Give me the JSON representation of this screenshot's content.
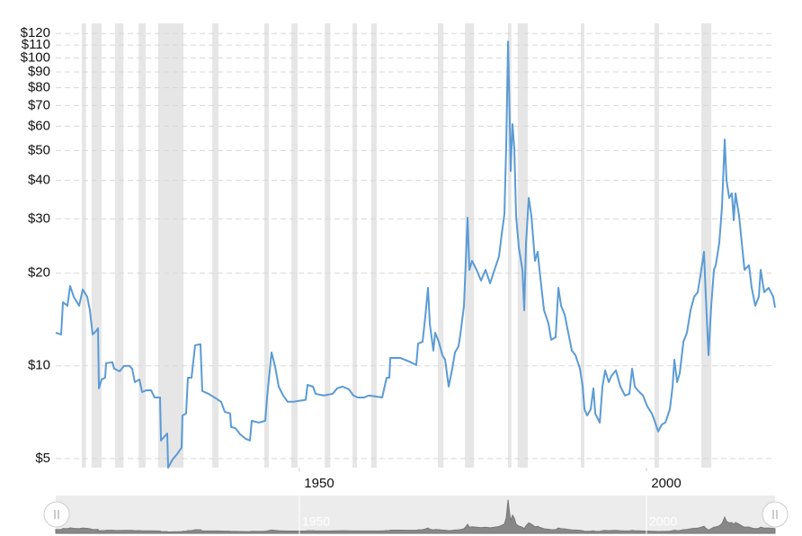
{
  "chart_data": {
    "type": "line",
    "yscale": "log",
    "grid": true,
    "recession_color": "#e6e6e6",
    "xlim": [
      1914.9,
      2018.52
    ],
    "xticks": [
      1950,
      2000
    ],
    "ylim": [
      4.67,
      121
    ],
    "yticks": [
      {
        "value": 5,
        "label": "$5"
      },
      {
        "value": 10,
        "label": "$10"
      },
      {
        "value": 20,
        "label": "$20"
      },
      {
        "value": 30,
        "label": "$30"
      },
      {
        "value": 40,
        "label": "$40"
      },
      {
        "value": 50,
        "label": "$50"
      },
      {
        "value": 60,
        "label": "$60"
      },
      {
        "value": 70,
        "label": "$70"
      },
      {
        "value": 80,
        "label": "$80"
      },
      {
        "value": 90,
        "label": "$90"
      },
      {
        "value": 100,
        "label": "$100"
      },
      {
        "value": 110,
        "label": "$110"
      },
      {
        "value": 120,
        "label": "$120"
      }
    ],
    "recessions": [
      [
        1918.65,
        1919.25
      ],
      [
        1920.05,
        1921.5
      ],
      [
        1923.45,
        1924.65
      ],
      [
        1926.85,
        1927.85
      ],
      [
        1929.65,
        1933.3
      ],
      [
        1937.45,
        1938.35
      ],
      [
        1944.95,
        1945.6
      ],
      [
        1948.85,
        1949.75
      ],
      [
        1953.65,
        1954.45
      ],
      [
        1957.65,
        1958.3
      ],
      [
        1960.35,
        1961.15
      ],
      [
        1969.95,
        1970.75
      ],
      [
        1973.85,
        1975.15
      ],
      [
        1980.05,
        1980.55
      ],
      [
        1981.45,
        1982.9
      ],
      [
        1990.55,
        1991.05
      ],
      [
        2001.15,
        2001.8
      ],
      [
        2007.9,
        2009.35
      ]
    ],
    "x": [
      1914.9,
      1915.68,
      1915.94,
      1916.58,
      1916.97,
      1917.49,
      1918.27,
      1918.79,
      1919.43,
      1919.82,
      1920.21,
      1920.73,
      1920.99,
      1921.12,
      1921.51,
      1922.02,
      1922.15,
      1923.06,
      1923.32,
      1924.1,
      1924.74,
      1925.52,
      1925.91,
      1926.3,
      1926.95,
      1927.34,
      1927.98,
      1928.63,
      1929.15,
      1929.93,
      1930.06,
      1930.96,
      1931.09,
      1931.74,
      1932.39,
      1933.03,
      1933.16,
      1933.68,
      1933.94,
      1934.46,
      1934.98,
      1935.75,
      1936.01,
      1936.92,
      1937.96,
      1938.73,
      1939.25,
      1940.03,
      1940.16,
      1940.8,
      1941.45,
      1942.23,
      1942.88,
      1943.13,
      1944.17,
      1945.08,
      1945.34,
      1945.99,
      1946.51,
      1947.02,
      1947.67,
      1948.32,
      1949.1,
      1950.0,
      1950.91,
      1951.17,
      1951.95,
      1952.34,
      1953.5,
      1954.8,
      1955.44,
      1956.22,
      1957.13,
      1957.78,
      1958.42,
      1959.33,
      1959.98,
      1961.01,
      1961.92,
      1962.57,
      1962.96,
      1963.09,
      1964.51,
      1965.81,
      1966.84,
      1967.1,
      1967.75,
      1968.14,
      1968.53,
      1968.79,
      1969.3,
      1969.56,
      1970.08,
      1970.6,
      1970.99,
      1971.51,
      1972.02,
      1972.41,
      1972.93,
      1973.19,
      1973.71,
      1973.97,
      1974.23,
      1974.49,
      1974.88,
      1975.52,
      1976.17,
      1976.82,
      1977.47,
      1978.11,
      1978.76,
      1979.15,
      1979.54,
      1979.8,
      1980.06,
      1980.32,
      1980.44,
      1980.7,
      1980.96,
      1981.22,
      1981.61,
      1982.13,
      1982.39,
      1982.65,
      1983.04,
      1983.42,
      1983.94,
      1984.33,
      1984.59,
      1985.24,
      1985.89,
      1986.27,
      1986.92,
      1987.31,
      1987.7,
      1988.22,
      1988.73,
      1989.25,
      1989.77,
      1990.42,
      1990.81,
      1991.07,
      1991.46,
      1991.97,
      1992.36,
      1992.62,
      1993.27,
      1993.66,
      1994.05,
      1994.57,
      1994.96,
      1995.6,
      1996.25,
      1996.9,
      1997.54,
      1997.93,
      1998.32,
      1998.84,
      1999.49,
      2000.13,
      2000.78,
      2001.17,
      2001.69,
      2002.21,
      2002.72,
      2003.37,
      2003.76,
      2004.02,
      2004.41,
      2004.8,
      2005.32,
      2005.83,
      2006.35,
      2006.87,
      2007.39,
      2007.9,
      2008.29,
      2008.55,
      2008.94,
      2009.33,
      2009.72,
      2009.98,
      2010.49,
      2010.88,
      2011.27,
      2011.53,
      2011.92,
      2012.31,
      2012.57,
      2012.83,
      2013.34,
      2013.73,
      2014.12,
      2014.77,
      2015.16,
      2015.67,
      2016.19,
      2016.45,
      2016.96,
      2017.61,
      2018.26,
      2018.52
    ],
    "series": [
      {
        "color": "#5b9bd5",
        "values": [
          12.81,
          12.64,
          16.1,
          15.67,
          18.17,
          16.76,
          15.67,
          17.69,
          16.76,
          15.15,
          12.64,
          12.98,
          13.24,
          8.45,
          9.03,
          9.15,
          10.2,
          10.27,
          9.79,
          9.6,
          9.99,
          9.99,
          9.79,
          8.85,
          9.03,
          8.22,
          8.33,
          8.33,
          7.89,
          7.89,
          5.72,
          6.03,
          4.67,
          4.97,
          5.17,
          5.42,
          6.9,
          7.0,
          9.15,
          9.15,
          11.66,
          11.75,
          8.28,
          8.11,
          7.84,
          7.64,
          7.09,
          7.0,
          6.33,
          6.27,
          6.0,
          5.8,
          5.72,
          6.63,
          6.54,
          6.63,
          7.89,
          11.05,
          9.92,
          8.56,
          8.01,
          7.64,
          7.64,
          7.7,
          7.75,
          8.67,
          8.56,
          8.11,
          8.01,
          8.11,
          8.45,
          8.56,
          8.39,
          8.01,
          7.89,
          7.89,
          8.01,
          7.95,
          7.89,
          9.15,
          9.15,
          10.61,
          10.61,
          10.33,
          10.06,
          11.81,
          11.97,
          14.46,
          17.92,
          13.7,
          11.2,
          12.81,
          11.97,
          10.83,
          10.47,
          8.56,
          9.79,
          11.05,
          11.58,
          12.64,
          15.67,
          21.92,
          30.27,
          20.5,
          21.92,
          20.5,
          18.91,
          20.5,
          18.54,
          20.5,
          22.68,
          26.81,
          31.1,
          52.5,
          113.0,
          60.0,
          42.9,
          60.9,
          50.8,
          30.7,
          24.26,
          20.5,
          15.15,
          25.08,
          35.1,
          30.7,
          21.92,
          23.46,
          20.5,
          15.15,
          13.7,
          12.14,
          12.38,
          17.92,
          15.67,
          14.65,
          12.81,
          11.2,
          10.83,
          9.79,
          8.56,
          7.23,
          6.9,
          7.23,
          8.45,
          7.0,
          6.54,
          8.56,
          9.66,
          8.85,
          9.28,
          9.66,
          8.56,
          8.01,
          8.11,
          9.79,
          8.56,
          8.28,
          8.01,
          7.38,
          7.0,
          6.63,
          6.12,
          6.45,
          6.54,
          7.23,
          8.56,
          10.47,
          8.85,
          9.47,
          11.97,
          12.81,
          15.15,
          16.76,
          17.34,
          20.5,
          23.46,
          16.76,
          10.83,
          15.67,
          20.5,
          21.2,
          25.08,
          32.8,
          54.3,
          40.1,
          35.1,
          36.3,
          29.7,
          36.3,
          30.7,
          25.08,
          20.5,
          21.2,
          17.92,
          15.67,
          16.76,
          20.5,
          17.34,
          17.92,
          16.76,
          15.46
        ]
      }
    ]
  }
}
